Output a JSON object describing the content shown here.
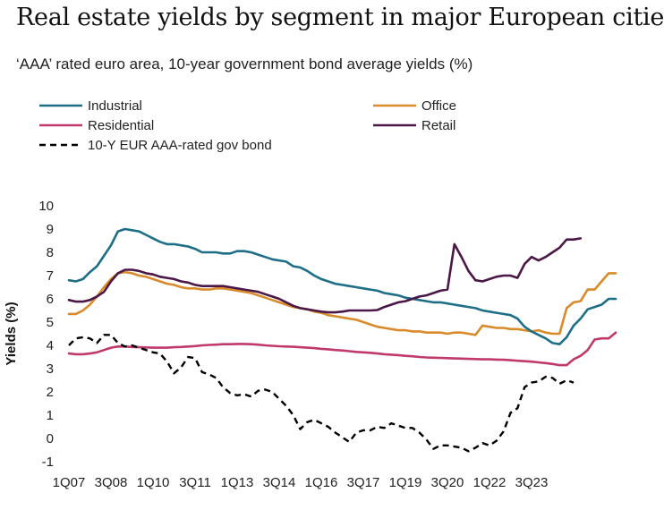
{
  "title": "Real estate yields by segment in major European cities",
  "subtitle": "‘AAA’ rated euro area, 10-year government bond average yields (%)",
  "colors": {
    "industrial": "#1f6e87",
    "office": "#d98a2a",
    "residential": "#c0396b",
    "retail": "#4a1746",
    "bond": "#000000"
  },
  "chart_data": {
    "type": "line",
    "ylabel": "Yields (%)",
    "xlabel": "",
    "ylim": [
      -1,
      10
    ],
    "y_ticks": [
      "10",
      "9",
      "8",
      "7",
      "6",
      "5",
      "4",
      "3",
      "2",
      "1",
      "0",
      "-1"
    ],
    "x_ticks": [
      "1Q07",
      "3Q08",
      "1Q10",
      "3Q11",
      "1Q13",
      "3Q14",
      "1Q16",
      "3Q17",
      "1Q19",
      "3Q20",
      "1Q22",
      "3Q23"
    ],
    "grid": false,
    "legend_position": "top",
    "series": [
      {
        "name": "Industrial",
        "key": "industrial",
        "style": "solid",
        "values": [
          6.8,
          6.75,
          6.85,
          7.15,
          7.4,
          7.85,
          8.3,
          8.9,
          9.0,
          8.95,
          8.9,
          8.75,
          8.6,
          8.45,
          8.35,
          8.35,
          8.3,
          8.25,
          8.15,
          8.0,
          8.0,
          8.0,
          7.95,
          7.95,
          8.05,
          8.05,
          8.0,
          7.9,
          7.8,
          7.7,
          7.65,
          7.6,
          7.4,
          7.35,
          7.2,
          7.0,
          6.85,
          6.75,
          6.65,
          6.6,
          6.55,
          6.5,
          6.45,
          6.4,
          6.35,
          6.25,
          6.2,
          6.15,
          6.05,
          6.0,
          5.95,
          5.9,
          5.85,
          5.85,
          5.8,
          5.75,
          5.7,
          5.65,
          5.6,
          5.5,
          5.45,
          5.4,
          5.35,
          5.3,
          5.15,
          4.8,
          4.6,
          4.45,
          4.3,
          4.1,
          4.05,
          4.35,
          4.85,
          5.15,
          5.55,
          5.65,
          5.75,
          6.0,
          6.0
        ]
      },
      {
        "name": "Office",
        "key": "office",
        "style": "solid",
        "values": [
          5.35,
          5.35,
          5.5,
          5.75,
          6.1,
          6.5,
          6.85,
          7.1,
          7.15,
          7.1,
          7.0,
          6.95,
          6.85,
          6.75,
          6.65,
          6.6,
          6.5,
          6.45,
          6.45,
          6.4,
          6.4,
          6.45,
          6.45,
          6.4,
          6.35,
          6.3,
          6.25,
          6.15,
          6.05,
          5.95,
          5.85,
          5.75,
          5.65,
          5.6,
          5.55,
          5.45,
          5.4,
          5.3,
          5.25,
          5.2,
          5.15,
          5.1,
          5.0,
          4.9,
          4.8,
          4.75,
          4.7,
          4.65,
          4.65,
          4.6,
          4.6,
          4.55,
          4.55,
          4.55,
          4.5,
          4.55,
          4.55,
          4.5,
          4.45,
          4.85,
          4.8,
          4.75,
          4.75,
          4.7,
          4.7,
          4.65,
          4.6,
          4.65,
          4.55,
          4.5,
          4.5,
          5.6,
          5.85,
          5.9,
          6.4,
          6.4,
          6.75,
          7.1,
          7.1
        ]
      },
      {
        "name": "Residential",
        "key": "residential",
        "style": "solid",
        "values": [
          3.65,
          3.62,
          3.62,
          3.65,
          3.7,
          3.8,
          3.9,
          3.95,
          3.95,
          3.93,
          3.92,
          3.91,
          3.9,
          3.9,
          3.9,
          3.92,
          3.93,
          3.95,
          3.97,
          4.0,
          4.02,
          4.03,
          4.05,
          4.05,
          4.06,
          4.06,
          4.05,
          4.03,
          4.0,
          3.98,
          3.96,
          3.95,
          3.94,
          3.92,
          3.9,
          3.88,
          3.85,
          3.83,
          3.8,
          3.78,
          3.75,
          3.72,
          3.7,
          3.68,
          3.65,
          3.62,
          3.6,
          3.58,
          3.55,
          3.53,
          3.5,
          3.48,
          3.47,
          3.46,
          3.45,
          3.44,
          3.43,
          3.42,
          3.41,
          3.4,
          3.4,
          3.39,
          3.38,
          3.36,
          3.34,
          3.32,
          3.3,
          3.27,
          3.24,
          3.2,
          3.15,
          3.15,
          3.4,
          3.55,
          3.8,
          4.25,
          4.3,
          4.3,
          4.55
        ]
      },
      {
        "name": "Retail",
        "key": "retail",
        "style": "solid",
        "values": [
          5.95,
          5.88,
          5.88,
          5.95,
          6.1,
          6.3,
          6.75,
          7.1,
          7.25,
          7.25,
          7.2,
          7.1,
          7.05,
          6.95,
          6.9,
          6.85,
          6.75,
          6.7,
          6.6,
          6.55,
          6.55,
          6.55,
          6.55,
          6.5,
          6.45,
          6.4,
          6.35,
          6.3,
          6.2,
          6.1,
          6.0,
          5.85,
          5.7,
          5.6,
          5.55,
          5.5,
          5.45,
          5.42,
          5.42,
          5.45,
          5.5,
          5.5,
          5.5,
          5.5,
          5.52,
          5.65,
          5.75,
          5.85,
          5.9,
          6.0,
          6.1,
          6.15,
          6.25,
          6.35,
          6.4,
          8.35,
          7.8,
          7.2,
          6.8,
          6.75,
          6.85,
          6.95,
          7.0,
          7.0,
          6.9,
          7.5,
          7.8,
          7.65,
          7.8,
          8.0,
          8.2,
          8.55,
          8.55,
          8.6
        ]
      },
      {
        "name": "10-Y EUR AAA-rated gov bond",
        "key": "bond",
        "style": "dashed",
        "values": [
          4.0,
          4.3,
          4.35,
          4.3,
          4.1,
          4.45,
          4.45,
          4.1,
          3.95,
          4.0,
          3.9,
          3.8,
          3.7,
          3.65,
          3.3,
          2.8,
          3.05,
          3.5,
          3.45,
          2.85,
          2.75,
          2.6,
          2.2,
          1.95,
          1.85,
          1.9,
          1.8,
          2.05,
          2.1,
          2.0,
          1.7,
          1.4,
          1.0,
          0.4,
          0.7,
          0.8,
          0.65,
          0.5,
          0.25,
          0.05,
          -0.15,
          0.25,
          0.35,
          0.35,
          0.5,
          0.45,
          0.65,
          0.55,
          0.45,
          0.45,
          0.25,
          -0.05,
          -0.45,
          -0.3,
          -0.3,
          -0.35,
          -0.4,
          -0.55,
          -0.4,
          -0.2,
          -0.3,
          -0.1,
          0.3,
          1.1,
          1.3,
          2.2,
          2.4,
          2.45,
          2.65,
          2.6,
          2.35,
          2.5,
          2.4
        ]
      }
    ]
  }
}
